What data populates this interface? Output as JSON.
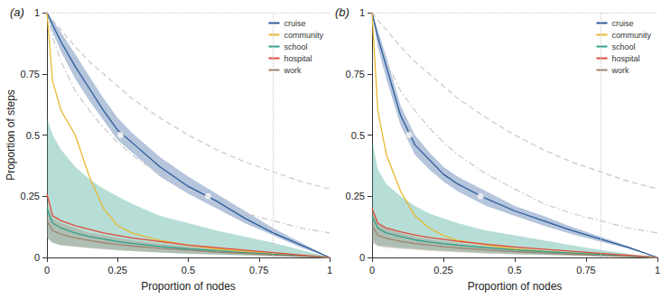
{
  "chart_data": [
    {
      "type": "line",
      "title": "(a)",
      "xlabel": "Proportion of nodes",
      "ylabel": "Proportion of steps",
      "xlim": [
        0,
        1
      ],
      "ylim": [
        0,
        1
      ],
      "xticks": [
        0,
        0.25,
        0.5,
        0.75,
        1
      ],
      "yticks": [
        0,
        0.25,
        0.5,
        0.75,
        1
      ],
      "legend": "upper right",
      "x_marker": 0.8,
      "y_marker": 1,
      "x": [
        0,
        0.02,
        0.05,
        0.1,
        0.15,
        0.2,
        0.25,
        0.3,
        0.4,
        0.5,
        0.6,
        0.7,
        0.8,
        0.9,
        1
      ],
      "reference_lines": [
        {
          "line_style": "dashed",
          "values": [
            1,
            0.97,
            0.93,
            0.86,
            0.8,
            0.75,
            0.7,
            0.65,
            0.57,
            0.5,
            0.44,
            0.39,
            0.35,
            0.31,
            0.28
          ]
        },
        {
          "line_style": "dashdot",
          "values": [
            1,
            0.9,
            0.8,
            0.68,
            0.6,
            0.53,
            0.47,
            0.42,
            0.34,
            0.28,
            0.22,
            0.18,
            0.15,
            0.12,
            0.1
          ]
        }
      ],
      "series": [
        {
          "name": "cruise",
          "color": "#2b5a9b",
          "values": [
            1,
            0.95,
            0.88,
            0.78,
            0.69,
            0.6,
            0.52,
            0.47,
            0.37,
            0.29,
            0.23,
            0.16,
            0.1,
            0.05,
            0
          ],
          "band_lower": [
            1,
            0.92,
            0.84,
            0.73,
            0.64,
            0.56,
            0.48,
            0.43,
            0.33,
            0.26,
            0.2,
            0.14,
            0.09,
            0.04,
            0
          ],
          "band_upper": [
            1,
            0.97,
            0.92,
            0.83,
            0.74,
            0.65,
            0.57,
            0.51,
            0.41,
            0.33,
            0.26,
            0.19,
            0.12,
            0.06,
            0
          ],
          "points": {
            "x": [
              0.26,
              0.57
            ],
            "y": [
              0.5,
              0.25
            ]
          }
        },
        {
          "name": "community",
          "color": "#e8b830",
          "values": [
            1,
            0.72,
            0.6,
            0.5,
            0.33,
            0.2,
            0.13,
            0.1,
            0.07,
            0.05,
            0.035,
            0.025,
            0.015,
            0.008,
            0
          ]
        },
        {
          "name": "school",
          "color": "#2fa08a",
          "values": [
            0.2,
            0.14,
            0.12,
            0.1,
            0.085,
            0.075,
            0.065,
            0.058,
            0.045,
            0.035,
            0.027,
            0.02,
            0.013,
            0.007,
            0
          ],
          "band_lower": [
            0.08,
            0.06,
            0.05,
            0.045,
            0.04,
            0.035,
            0.03,
            0.027,
            0.02,
            0.015,
            0.012,
            0.008,
            0.005,
            0.002,
            0
          ],
          "band_upper": [
            0.57,
            0.5,
            0.44,
            0.37,
            0.32,
            0.28,
            0.25,
            0.22,
            0.17,
            0.14,
            0.11,
            0.085,
            0.06,
            0.03,
            0
          ]
        },
        {
          "name": "hospital",
          "color": "#e04a3a",
          "values": [
            0.26,
            0.17,
            0.15,
            0.13,
            0.115,
            0.1,
            0.09,
            0.08,
            0.065,
            0.05,
            0.04,
            0.03,
            0.02,
            0.01,
            0
          ]
        },
        {
          "name": "work",
          "color": "#a08470",
          "values": [
            0.15,
            0.11,
            0.095,
            0.08,
            0.07,
            0.06,
            0.053,
            0.047,
            0.037,
            0.03,
            0.022,
            0.016,
            0.01,
            0.005,
            0
          ],
          "band_lower": [
            0.08,
            0.06,
            0.05,
            0.043,
            0.038,
            0.033,
            0.029,
            0.026,
            0.02,
            0.016,
            0.012,
            0.009,
            0.005,
            0.003,
            0
          ],
          "band_upper": [
            0.22,
            0.16,
            0.14,
            0.12,
            0.1,
            0.09,
            0.08,
            0.07,
            0.055,
            0.045,
            0.033,
            0.024,
            0.015,
            0.008,
            0
          ]
        }
      ]
    },
    {
      "type": "line",
      "title": "(b)",
      "xlabel": "Proportion of nodes",
      "xlim": [
        0,
        1
      ],
      "ylim": [
        0,
        1
      ],
      "xticks": [
        0,
        0.25,
        0.5,
        0.75,
        1
      ],
      "yticks": [
        0,
        0.25,
        0.5,
        0.75,
        1
      ],
      "legend": "upper right",
      "x_marker": 0.8,
      "y_marker": 1,
      "x": [
        0,
        0.02,
        0.05,
        0.1,
        0.15,
        0.2,
        0.25,
        0.3,
        0.4,
        0.5,
        0.6,
        0.7,
        0.8,
        0.9,
        1
      ],
      "reference_lines": [
        {
          "line_style": "dashed",
          "values": [
            1,
            0.97,
            0.93,
            0.86,
            0.8,
            0.75,
            0.7,
            0.65,
            0.57,
            0.5,
            0.44,
            0.39,
            0.35,
            0.31,
            0.28
          ]
        },
        {
          "line_style": "dashdot",
          "values": [
            1,
            0.9,
            0.8,
            0.68,
            0.6,
            0.53,
            0.47,
            0.42,
            0.34,
            0.28,
            0.22,
            0.18,
            0.15,
            0.12,
            0.1
          ]
        }
      ],
      "series": [
        {
          "name": "cruise",
          "color": "#2b5a9b",
          "values": [
            1,
            0.9,
            0.78,
            0.58,
            0.46,
            0.4,
            0.34,
            0.3,
            0.24,
            0.19,
            0.15,
            0.11,
            0.075,
            0.04,
            0
          ],
          "band_lower": [
            1,
            0.86,
            0.73,
            0.54,
            0.42,
            0.36,
            0.31,
            0.27,
            0.21,
            0.17,
            0.13,
            0.095,
            0.065,
            0.035,
            0
          ],
          "band_upper": [
            1,
            0.93,
            0.82,
            0.62,
            0.5,
            0.43,
            0.37,
            0.33,
            0.27,
            0.21,
            0.17,
            0.125,
            0.085,
            0.045,
            0
          ],
          "points": {
            "x": [
              0.13,
              0.38
            ],
            "y": [
              0.5,
              0.25
            ]
          }
        },
        {
          "name": "community",
          "color": "#e8b830",
          "values": [
            1,
            0.6,
            0.42,
            0.27,
            0.17,
            0.12,
            0.09,
            0.07,
            0.05,
            0.035,
            0.025,
            0.018,
            0.012,
            0.006,
            0
          ]
        },
        {
          "name": "school",
          "color": "#2fa08a",
          "values": [
            0.17,
            0.12,
            0.1,
            0.085,
            0.072,
            0.063,
            0.056,
            0.05,
            0.04,
            0.031,
            0.024,
            0.018,
            0.012,
            0.006,
            0
          ],
          "band_lower": [
            0.07,
            0.05,
            0.045,
            0.04,
            0.035,
            0.03,
            0.027,
            0.024,
            0.018,
            0.014,
            0.011,
            0.008,
            0.005,
            0.002,
            0
          ],
          "band_upper": [
            0.48,
            0.36,
            0.3,
            0.25,
            0.21,
            0.18,
            0.16,
            0.14,
            0.11,
            0.09,
            0.07,
            0.05,
            0.03,
            0.015,
            0
          ]
        },
        {
          "name": "hospital",
          "color": "#e04a3a",
          "values": [
            0.2,
            0.14,
            0.12,
            0.105,
            0.092,
            0.082,
            0.074,
            0.066,
            0.054,
            0.043,
            0.034,
            0.025,
            0.017,
            0.009,
            0
          ]
        },
        {
          "name": "work",
          "color": "#a08470",
          "values": [
            0.13,
            0.09,
            0.078,
            0.066,
            0.057,
            0.05,
            0.044,
            0.039,
            0.031,
            0.024,
            0.018,
            0.013,
            0.008,
            0.004,
            0
          ],
          "band_lower": [
            0.06,
            0.045,
            0.04,
            0.035,
            0.031,
            0.027,
            0.024,
            0.021,
            0.016,
            0.013,
            0.01,
            0.007,
            0.004,
            0.002,
            0
          ],
          "band_upper": [
            0.19,
            0.14,
            0.12,
            0.1,
            0.085,
            0.075,
            0.066,
            0.058,
            0.046,
            0.036,
            0.027,
            0.02,
            0.012,
            0.006,
            0
          ]
        }
      ]
    }
  ]
}
